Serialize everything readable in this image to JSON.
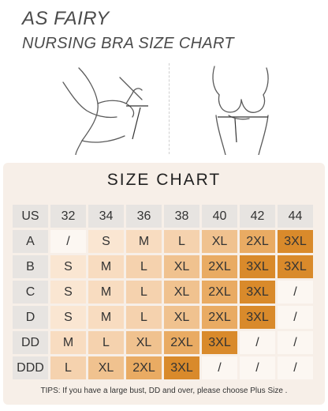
{
  "header": {
    "brand": "AS FAIRY",
    "subtitle": "NURSING BRA SIZE CHART"
  },
  "chart": {
    "title": "SIZE CHART",
    "columns": [
      "US",
      "32",
      "34",
      "36",
      "38",
      "40",
      "42",
      "44"
    ],
    "rows": [
      {
        "label": "A",
        "values": [
          "/",
          "S",
          "M",
          "L",
          "XL",
          "2XL",
          "3XL"
        ]
      },
      {
        "label": "B",
        "values": [
          "S",
          "M",
          "L",
          "XL",
          "2XL",
          "3XL",
          "3XL"
        ]
      },
      {
        "label": "C",
        "values": [
          "S",
          "M",
          "L",
          "XL",
          "2XL",
          "3XL",
          "/"
        ]
      },
      {
        "label": "D",
        "values": [
          "S",
          "M",
          "L",
          "XL",
          "2XL",
          "3XL",
          "/"
        ]
      },
      {
        "label": "DD",
        "values": [
          "M",
          "L",
          "XL",
          "2XL",
          "3XL",
          "/",
          "/"
        ]
      },
      {
        "label": "DDD",
        "values": [
          "L",
          "XL",
          "2XL",
          "3XL",
          "/",
          "/",
          "/"
        ]
      }
    ],
    "tips": "TIPS: If you have a large bust, DD and over, please choose  Plus Size ."
  },
  "colors": {
    "header_cell": "#e7e4e1",
    "slash": "#fcf7f2",
    "S": "#fae6d2",
    "M": "#f8dcc0",
    "L": "#f5d2ae",
    "XL": "#f0c28f",
    "2XL": "#e9ab63",
    "3XL": "#d98a2b",
    "text": "#333333"
  }
}
